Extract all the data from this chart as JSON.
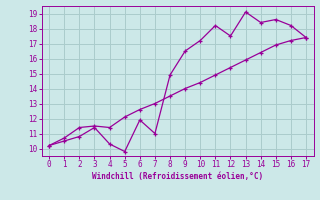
{
  "xlabel": "Windchill (Refroidissement éolien,°C)",
  "x_values": [
    0,
    1,
    2,
    3,
    4,
    5,
    6,
    7,
    8,
    9,
    10,
    11,
    12,
    13,
    14,
    15,
    16,
    17
  ],
  "temp_line": [
    10.2,
    10.5,
    10.8,
    11.4,
    10.3,
    9.8,
    11.9,
    11.0,
    14.9,
    16.5,
    17.2,
    18.2,
    17.5,
    19.1,
    18.4,
    18.6,
    18.2,
    17.4
  ],
  "wind_line": [
    10.2,
    10.7,
    11.4,
    11.5,
    11.4,
    12.1,
    12.6,
    13.0,
    13.5,
    14.0,
    14.4,
    14.9,
    15.4,
    15.9,
    16.4,
    16.9,
    17.2,
    17.4
  ],
  "line_color": "#990099",
  "bg_color": "#cce8e8",
  "grid_color": "#aacccc",
  "ylim": [
    9.5,
    19.5
  ],
  "xlim": [
    -0.5,
    17.5
  ],
  "yticks": [
    10,
    11,
    12,
    13,
    14,
    15,
    16,
    17,
    18,
    19
  ],
  "xticks": [
    0,
    1,
    2,
    3,
    4,
    5,
    6,
    7,
    8,
    9,
    10,
    11,
    12,
    13,
    14,
    15,
    16,
    17
  ],
  "tick_labelsize": 5.5,
  "xlabel_fontsize": 5.5
}
